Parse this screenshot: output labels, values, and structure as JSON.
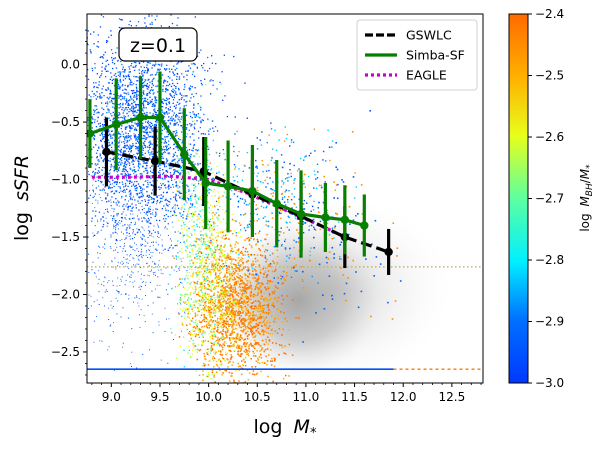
{
  "chart_data": {
    "type": "scatter",
    "title": "",
    "annotation": "z=0.1",
    "xlabel": "log",
    "xlabel_symbol": "M",
    "xlabel_sub": "*",
    "ylabel": "log",
    "ylabel_italic": "sSFR",
    "xlim": [
      8.75,
      12.82
    ],
    "ylim": [
      -2.77,
      0.44
    ],
    "x_ticks": [
      9.0,
      9.5,
      10.0,
      10.5,
      11.0,
      11.5,
      12.0,
      12.5
    ],
    "x_tick_labels": [
      "9.0",
      "9.5",
      "10.0",
      "10.5",
      "11.0",
      "11.5",
      "12.0",
      "12.5"
    ],
    "y_ticks": [
      0.0,
      -0.5,
      -1.0,
      -1.5,
      -2.0,
      -2.5
    ],
    "y_tick_labels": [
      "0.0",
      "−0.5",
      "−1.0",
      "−1.5",
      "−2.0",
      "−2.5"
    ],
    "colorbar": {
      "label_prefix": "log",
      "label_symbol": "M",
      "label_sub1": "BH",
      "label_mid": "/",
      "label_symbol2": "M",
      "label_sub2": "*",
      "range": [
        -3.0,
        -2.4
      ],
      "ticks": [
        -3.0,
        -2.9,
        -2.8,
        -2.7,
        -2.6,
        -2.5,
        -2.4
      ],
      "tick_labels": [
        "−3.0",
        "−2.9",
        "−2.8",
        "−2.7",
        "−2.6",
        "−2.5",
        "−2.4"
      ],
      "colormap": "jet-like (blue to orange)"
    },
    "reference_line": {
      "y": -1.76,
      "style": "dotted",
      "color": "#c8b560"
    },
    "legend_position": "upper right",
    "series": [
      {
        "name": "GSWLC",
        "color": "#000000",
        "style": "dashed",
        "x": [
          8.95,
          9.45,
          9.95,
          10.45,
          10.95,
          11.4,
          11.85
        ],
        "y": [
          -0.76,
          -0.84,
          -0.93,
          -1.13,
          -1.32,
          -1.5,
          -1.63
        ],
        "yerr": [
          0.3,
          0.3,
          0.3,
          0.3,
          0.3,
          0.27,
          0.2
        ]
      },
      {
        "name": "Simba-SF",
        "color": "#078000",
        "style": "solid",
        "x": [
          8.78,
          9.05,
          9.3,
          9.5,
          9.75,
          9.97,
          10.2,
          10.45,
          10.7,
          10.95,
          11.2,
          11.4,
          11.6
        ],
        "y": [
          -0.6,
          -0.52,
          -0.46,
          -0.46,
          -0.78,
          -1.03,
          -1.06,
          -1.1,
          -1.21,
          -1.3,
          -1.33,
          -1.35,
          -1.4
        ],
        "yerr": [
          0.3,
          0.4,
          0.36,
          0.4,
          0.4,
          0.4,
          0.4,
          0.4,
          0.38,
          0.38,
          0.3,
          0.3,
          0.27
        ]
      },
      {
        "name": "EAGLE",
        "color": "#cc00cc",
        "style": "dotted",
        "x": [
          8.8,
          9.2,
          9.6,
          10.0,
          10.4,
          10.8,
          11.2,
          11.4
        ],
        "y": [
          -0.98,
          -0.98,
          -0.97,
          -1.0,
          -1.12,
          -1.27,
          -1.42,
          -1.5
        ]
      }
    ]
  }
}
